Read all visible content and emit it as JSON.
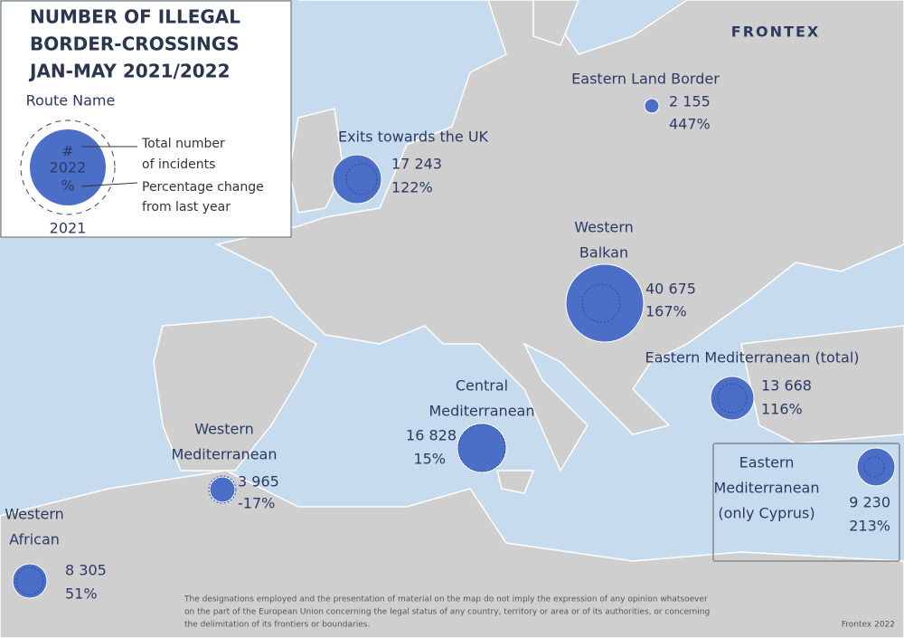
{
  "header": {
    "title_lines": [
      "NUMBER OF ILLEGAL",
      "BORDER-CROSSINGS",
      "JAN-MAY 2021/2022"
    ],
    "logo": "FRONTEX"
  },
  "legend": {
    "route_name": "Route Name",
    "circle_lines": [
      "#",
      "2022",
      "%"
    ],
    "total_lines": [
      "Total number",
      "of incidents"
    ],
    "change_lines": [
      "Percentage change",
      "from last year"
    ],
    "previous_year": "2021"
  },
  "routes": [
    {
      "name_lines": [
        "Eastern Land Border"
      ],
      "incidents": "2 155",
      "change": "447%"
    },
    {
      "name_lines": [
        "Exits towards the UK"
      ],
      "incidents": "17 243",
      "change": "122%"
    },
    {
      "name_lines": [
        "Western",
        "Balkan"
      ],
      "incidents": "40 675",
      "change": "167%"
    },
    {
      "name_lines": [
        "Eastern Mediterranean (total)"
      ],
      "incidents": "13 668",
      "change": "116%"
    },
    {
      "name_lines": [
        "Central",
        "Mediterranean"
      ],
      "incidents": "16 828",
      "change": "15%"
    },
    {
      "name_lines": [
        "Western",
        "Mediterranean"
      ],
      "incidents": "3 965",
      "change": "-17%"
    },
    {
      "name_lines": [
        "Western",
        "African"
      ],
      "incidents": "8 305",
      "change": "51%"
    },
    {
      "name_lines": [
        "Eastern",
        "Mediterranean",
        "(only Cyprus)"
      ],
      "incidents": "9 230",
      "change": "213%"
    }
  ],
  "footer": {
    "disclaimer_lines": [
      "The designations employed and the presentation of material on the map do not imply the expression of any opinion whatsoever",
      "on the part of the European Union concerning the legal status of any country, territory or area or of its authorities, or concerning",
      "the delimitation of its frontiers or boundaries."
    ],
    "credit": "Frontex 2022"
  }
}
